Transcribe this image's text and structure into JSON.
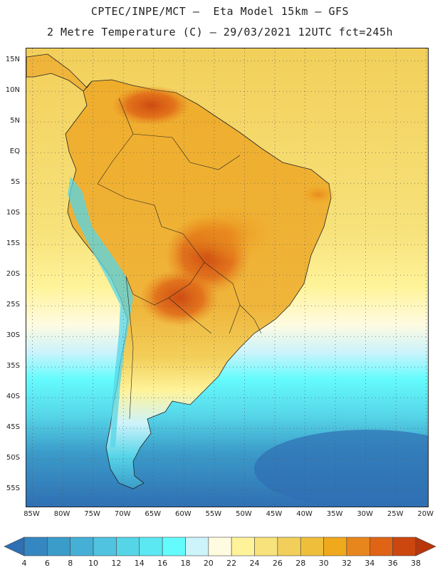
{
  "header": {
    "line1": "CPTEC/INPE/MCT –  Eta Model 15km – GFS",
    "line2": "2 Metre Temperature (C) – 29/03/2021 12UTC fct=245h"
  },
  "map": {
    "lat_range": [
      -58,
      17
    ],
    "lon_range": [
      -86,
      -19.5
    ],
    "lat_ticks": [
      {
        "value": 15,
        "label": "15N"
      },
      {
        "value": 10,
        "label": "10N"
      },
      {
        "value": 5,
        "label": "5N"
      },
      {
        "value": 0,
        "label": "EQ"
      },
      {
        "value": -5,
        "label": "5S"
      },
      {
        "value": -10,
        "label": "10S"
      },
      {
        "value": -15,
        "label": "15S"
      },
      {
        "value": -20,
        "label": "20S"
      },
      {
        "value": -25,
        "label": "25S"
      },
      {
        "value": -30,
        "label": "30S"
      },
      {
        "value": -35,
        "label": "35S"
      },
      {
        "value": -40,
        "label": "40S"
      },
      {
        "value": -45,
        "label": "45S"
      },
      {
        "value": -50,
        "label": "50S"
      },
      {
        "value": -55,
        "label": "55S"
      }
    ],
    "lon_ticks": [
      {
        "value": -85,
        "label": "85W"
      },
      {
        "value": -80,
        "label": "80W"
      },
      {
        "value": -75,
        "label": "75W"
      },
      {
        "value": -70,
        "label": "70W"
      },
      {
        "value": -65,
        "label": "65W"
      },
      {
        "value": -60,
        "label": "60W"
      },
      {
        "value": -55,
        "label": "55W"
      },
      {
        "value": -50,
        "label": "50W"
      },
      {
        "value": -45,
        "label": "45W"
      },
      {
        "value": -40,
        "label": "40W"
      },
      {
        "value": -35,
        "label": "35W"
      },
      {
        "value": -30,
        "label": "30W"
      },
      {
        "value": -25,
        "label": "25W"
      },
      {
        "value": -20,
        "label": "20W"
      }
    ]
  },
  "colorbar": {
    "labels": [
      "4",
      "6",
      "8",
      "10",
      "12",
      "14",
      "16",
      "18",
      "20",
      "22",
      "24",
      "26",
      "28",
      "30",
      "32",
      "34",
      "36",
      "38"
    ],
    "colors": [
      "#2f6fb3",
      "#3487c0",
      "#3b9bc9",
      "#45afd6",
      "#4fc3df",
      "#56d5e8",
      "#5ce8f2",
      "#64fbfd",
      "#cdf3fb",
      "#fffbe0",
      "#fff39a",
      "#f7e27b",
      "#f2cf5a",
      "#efbf3c",
      "#f0a81c",
      "#e8861e",
      "#df6416",
      "#cc4610",
      "#b8360a"
    ]
  }
}
